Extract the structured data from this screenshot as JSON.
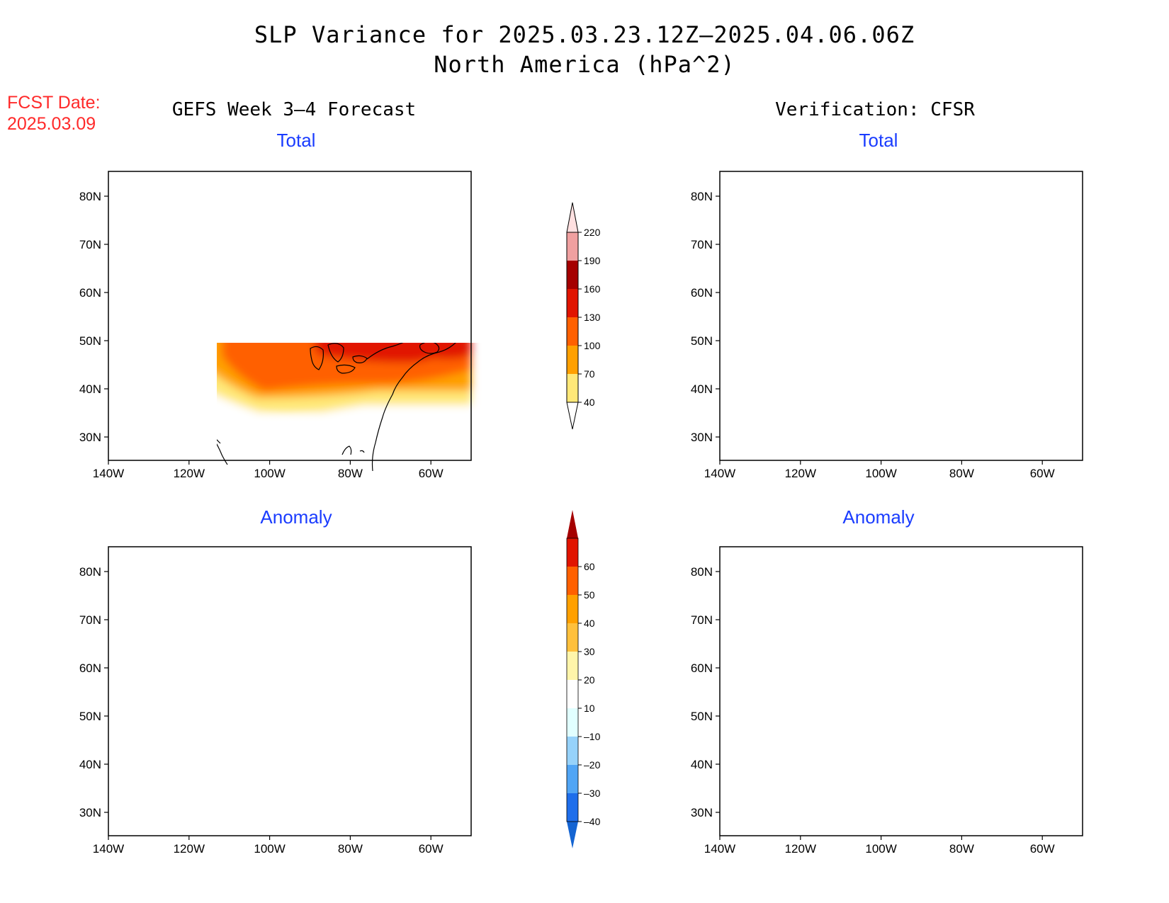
{
  "header": {
    "title_line1": "SLP Variance for 2025.03.23.12Z–2025.04.06.06Z",
    "title_line2": "North America (hPa^2)",
    "fcst_label": "FCST Date:",
    "fcst_date": "2025.03.09"
  },
  "columns": {
    "left": "GEFS Week 3–4 Forecast",
    "right": "Verification: CFSR"
  },
  "panels": {
    "top_left": "Total",
    "top_right": "Total",
    "bottom_left": "Anomaly",
    "bottom_right": "Anomaly"
  },
  "axes": {
    "lat_ticks": [
      "80N",
      "70N",
      "60N",
      "50N",
      "40N",
      "30N"
    ],
    "lon_ticks": [
      "140W",
      "120W",
      "100W",
      "80W",
      "60W"
    ]
  },
  "colorbars": {
    "total": {
      "labels": [
        "40",
        "70",
        "100",
        "130",
        "160",
        "190",
        "220"
      ],
      "colors": [
        "#ffe878",
        "#ffa000",
        "#ff6000",
        "#e11400",
        "#a50000",
        "#f0a0a0",
        "#ffe0e0"
      ]
    },
    "anomaly": {
      "labels": [
        "–40",
        "–30",
        "–20",
        "–10",
        "10",
        "20",
        "30",
        "40",
        "50",
        "60"
      ],
      "colors": [
        "#1464d2",
        "#1e6eeb",
        "#50a5f5",
        "#96d2fa",
        "#e1ffff",
        "#ffffff",
        "#fff5aa",
        "#ffc03c",
        "#ffa000",
        "#ff6000",
        "#e11400",
        "#a50000"
      ]
    }
  },
  "map_colors": {
    "yellow": "#ffe878",
    "orange": "#ffa000",
    "dorange": "#ff6000",
    "red": "#e11400",
    "dred": "#a50000",
    "pink": "#f0a0a0",
    "lpink": "#ffe0e0",
    "lblue": "#e1ffff",
    "blue1": "#96d2fa",
    "blue2": "#50a5f5",
    "blue3": "#1e6eeb",
    "blue4": "#1464d2",
    "lyellow": "#fff5aa",
    "lorange": "#ffc03c"
  }
}
